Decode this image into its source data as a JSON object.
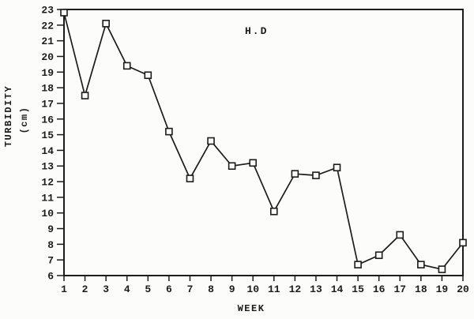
{
  "page": {
    "background": "#fcfcfa",
    "ink_color": "#1c1c1c"
  },
  "chart_data": {
    "type": "line",
    "title": "H.D",
    "xlabel": "WEEK",
    "ylabel": "TURBIDITY",
    "ylabel_unit": "(cm)",
    "x": [
      1,
      2,
      3,
      4,
      5,
      6,
      7,
      8,
      9,
      10,
      11,
      12,
      13,
      14,
      15,
      16,
      17,
      18,
      19,
      20
    ],
    "values": [
      22.8,
      17.5,
      22.1,
      19.4,
      18.8,
      15.2,
      12.2,
      14.6,
      13.0,
      13.2,
      10.1,
      12.5,
      12.4,
      12.9,
      6.7,
      7.3,
      8.6,
      6.7,
      6.4,
      8.1
    ],
    "series_name": "Turbidity (cm)",
    "xlim": [
      1,
      20
    ],
    "ylim": [
      6,
      23
    ],
    "ytick_step": 1,
    "xtick_step": 1,
    "xtick_labels": [
      "1",
      "2",
      "3",
      "4",
      "5",
      "6",
      "7",
      "8",
      "9",
      "10",
      "11",
      "12",
      "13",
      "14",
      "15",
      "16",
      "17",
      "18",
      "19",
      "20"
    ],
    "ytick_labels": [
      "6",
      "7",
      "8",
      "9",
      "10",
      "11",
      "12",
      "13",
      "14",
      "15",
      "16",
      "17",
      "18",
      "19",
      "20",
      "21",
      "22",
      "23"
    ],
    "grid": false,
    "legend": null,
    "marker": "open-square",
    "line_color": "#1c1c1c",
    "marker_fill": "#fcfcfa",
    "plot_border": true
  }
}
